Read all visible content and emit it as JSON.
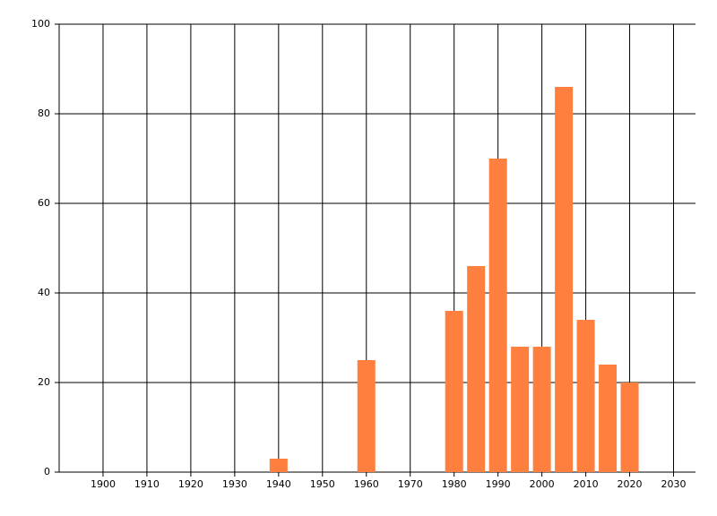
{
  "chart_data": {
    "type": "bar",
    "x": [
      1940,
      1960,
      1980,
      1985,
      1990,
      1995,
      2000,
      2005,
      2010,
      2015,
      2020
    ],
    "values": [
      3,
      25,
      36,
      46,
      70,
      28,
      28,
      86,
      34,
      24,
      20
    ],
    "color": "#ff7f3f",
    "xlim": [
      1890,
      2035
    ],
    "xticks": [
      1900,
      1910,
      1920,
      1930,
      1940,
      1950,
      1960,
      1970,
      1980,
      1990,
      2000,
      2010,
      2020,
      2030
    ],
    "ylim": [
      0,
      100
    ],
    "yticks": [
      0,
      20,
      40,
      60,
      80,
      100
    ],
    "grid": true
  }
}
